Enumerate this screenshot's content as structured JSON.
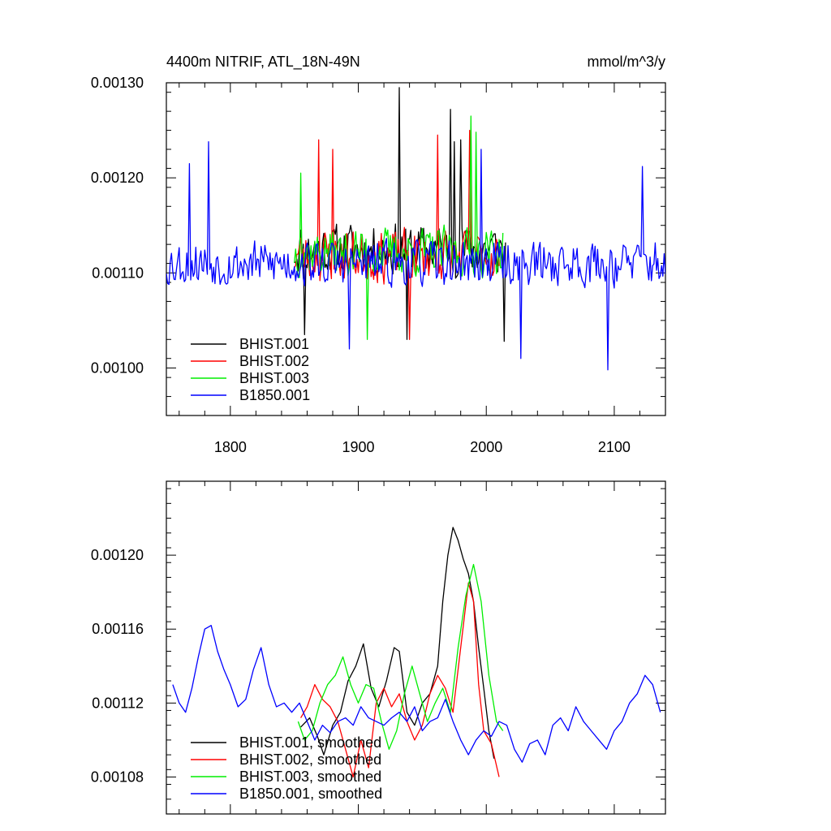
{
  "chart_data": [
    {
      "type": "line",
      "title_left": "4400m NITRIF, ATL_18N-49N",
      "title_right": "mmol/m^3/y",
      "xlim": [
        1750,
        2140
      ],
      "ylim": [
        0.00095,
        0.0013
      ],
      "y_major_ticks": [
        0.001,
        0.0011,
        0.0012,
        0.0013
      ],
      "y_tick_labels": [
        "0.00100",
        "0.00110",
        "0.00120",
        "0.00130"
      ],
      "x_major_ticks": [
        1800,
        1900,
        2000,
        2100
      ],
      "x_tick_labels": [
        "1800",
        "1900",
        "2000",
        "2100"
      ],
      "legend_position": "bottom-left",
      "series": [
        {
          "name": "BHIST.001",
          "color": "#000000",
          "x_range": [
            1850,
            2015
          ],
          "mean": 0.001125,
          "amplitude": 4.5e-05,
          "seed": 11,
          "peaks": [
            [
              1932,
              0.001295
            ],
            [
              1972,
              0.001272
            ],
            [
              1980,
              0.00124
            ],
            [
              1975,
              0.001238
            ],
            [
              1858,
              0.001035
            ],
            [
              1938,
              0.00103
            ],
            [
              2014,
              0.001028
            ]
          ]
        },
        {
          "name": "BHIST.002",
          "color": "#ff0000",
          "x_range": [
            1850,
            2010
          ],
          "mean": 0.001118,
          "amplitude": 4.5e-05,
          "seed": 23,
          "peaks": [
            [
              1869,
              0.00124
            ],
            [
              1962,
              0.001245
            ],
            [
              1987,
              0.00125
            ],
            [
              1880,
              0.00123
            ],
            [
              1940,
              0.00103
            ]
          ]
        },
        {
          "name": "BHIST.003",
          "color": "#00ee00",
          "x_range": [
            1850,
            2013
          ],
          "mean": 0.001122,
          "amplitude": 4.2e-05,
          "seed": 37,
          "peaks": [
            [
              1988,
              0.001265
            ],
            [
              1992,
              0.001248
            ],
            [
              1855,
              0.001205
            ],
            [
              1907,
              0.00103
            ]
          ]
        },
        {
          "name": "B1850.001",
          "color": "#0000ff",
          "x_range": [
            1750,
            2140
          ],
          "mean": 0.00111,
          "amplitude": 4e-05,
          "seed": 53,
          "peaks": [
            [
              1768,
              0.001215
            ],
            [
              1783,
              0.001238
            ],
            [
              1996,
              0.00123
            ],
            [
              2122,
              0.001212
            ],
            [
              1893,
              0.00102
            ],
            [
              2095,
              0.000998
            ],
            [
              2027,
              0.00101
            ]
          ]
        }
      ]
    },
    {
      "type": "line",
      "xlim": [
        1750,
        2140
      ],
      "ylim": [
        0.00106,
        0.00124
      ],
      "y_major_ticks": [
        0.00108,
        0.00112,
        0.00116,
        0.0012
      ],
      "y_tick_labels": [
        "0.00108",
        "0.00112",
        "0.00116",
        "0.00120"
      ],
      "x_major_ticks": [
        1800,
        1900,
        2000,
        2100
      ],
      "legend_position": "bottom-left",
      "series": [
        {
          "name": "BHIST.001, smoothed",
          "color": "#000000",
          "x": [
            1855,
            1862,
            1868,
            1873,
            1880,
            1886,
            1892,
            1898,
            1904,
            1910,
            1916,
            1922,
            1928,
            1932,
            1938,
            1944,
            1950,
            1956,
            1962,
            1966,
            1970,
            1974,
            1978,
            1982,
            1986,
            1990,
            1994,
            1998,
            2002,
            2006
          ],
          "y": [
            0.001107,
            0.001112,
            0.001102,
            0.001092,
            0.001108,
            0.001115,
            0.001132,
            0.00114,
            0.001152,
            0.001128,
            0.001118,
            0.001132,
            0.00115,
            0.001148,
            0.001115,
            0.001108,
            0.00112,
            0.001125,
            0.00114,
            0.001175,
            0.0012,
            0.001215,
            0.001208,
            0.001198,
            0.00119,
            0.001175,
            0.00115,
            0.001128,
            0.001105,
            0.00109
          ]
        },
        {
          "name": "BHIST.002, smoothed",
          "color": "#ff0000",
          "x": [
            1855,
            1860,
            1866,
            1872,
            1878,
            1884,
            1890,
            1896,
            1902,
            1908,
            1914,
            1920,
            1926,
            1932,
            1938,
            1944,
            1950,
            1956,
            1962,
            1968,
            1974,
            1980,
            1986,
            1990,
            1994,
            1998,
            2004,
            2010
          ],
          "y": [
            0.001112,
            0.001118,
            0.00113,
            0.001122,
            0.001118,
            0.00111,
            0.001095,
            0.00108,
            0.0011,
            0.001085,
            0.00112,
            0.001128,
            0.001118,
            0.001125,
            0.00111,
            0.0011,
            0.001108,
            0.001125,
            0.001135,
            0.001128,
            0.001115,
            0.00115,
            0.001185,
            0.001175,
            0.00113,
            0.001105,
            0.001098,
            0.00108
          ]
        },
        {
          "name": "BHIST.003, smoothed",
          "color": "#00ee00",
          "x": [
            1853,
            1858,
            1864,
            1870,
            1876,
            1882,
            1888,
            1894,
            1900,
            1906,
            1912,
            1918,
            1924,
            1930,
            1936,
            1942,
            1948,
            1954,
            1960,
            1966,
            1972,
            1978,
            1984,
            1990,
            1996,
            2002,
            2008,
            2013
          ],
          "y": [
            0.00111,
            0.0011,
            0.001105,
            0.00112,
            0.00113,
            0.001135,
            0.001145,
            0.00113,
            0.00112,
            0.00113,
            0.001128,
            0.00111,
            0.001095,
            0.001105,
            0.001125,
            0.00114,
            0.001125,
            0.00111,
            0.00112,
            0.001128,
            0.001115,
            0.00115,
            0.001178,
            0.001195,
            0.001175,
            0.001135,
            0.00111,
            0.001105
          ]
        },
        {
          "name": "B1850.001, smoothed",
          "color": "#0000ff",
          "x": [
            1755,
            1760,
            1765,
            1770,
            1775,
            1780,
            1785,
            1790,
            1795,
            1800,
            1806,
            1812,
            1818,
            1824,
            1830,
            1836,
            1842,
            1848,
            1854,
            1860,
            1866,
            1872,
            1878,
            1884,
            1890,
            1896,
            1902,
            1908,
            1914,
            1920,
            1926,
            1932,
            1938,
            1944,
            1950,
            1956,
            1962,
            1968,
            1974,
            1980,
            1986,
            1992,
            1998,
            2004,
            2010,
            2016,
            2022,
            2028,
            2034,
            2040,
            2046,
            2052,
            2058,
            2064,
            2070,
            2076,
            2082,
            2088,
            2094,
            2100,
            2106,
            2112,
            2118,
            2124,
            2130,
            2136
          ],
          "y": [
            0.00113,
            0.00112,
            0.001115,
            0.001128,
            0.001145,
            0.00116,
            0.001162,
            0.001148,
            0.001138,
            0.00113,
            0.001118,
            0.001122,
            0.001138,
            0.00115,
            0.00113,
            0.001118,
            0.00112,
            0.001115,
            0.00112,
            0.00111,
            0.0011,
            0.001108,
            0.001104,
            0.00111,
            0.001112,
            0.001108,
            0.001118,
            0.001112,
            0.00111,
            0.001108,
            0.001112,
            0.001115,
            0.00111,
            0.001118,
            0.001105,
            0.00111,
            0.001112,
            0.001122,
            0.00111,
            0.0011,
            0.001092,
            0.0011,
            0.001105,
            0.001102,
            0.00111,
            0.001108,
            0.001095,
            0.001088,
            0.001098,
            0.0011,
            0.001092,
            0.001108,
            0.001112,
            0.001105,
            0.001118,
            0.00111,
            0.001105,
            0.0011,
            0.001095,
            0.001105,
            0.00111,
            0.00112,
            0.001125,
            0.001135,
            0.00113,
            0.001115
          ]
        }
      ]
    }
  ]
}
